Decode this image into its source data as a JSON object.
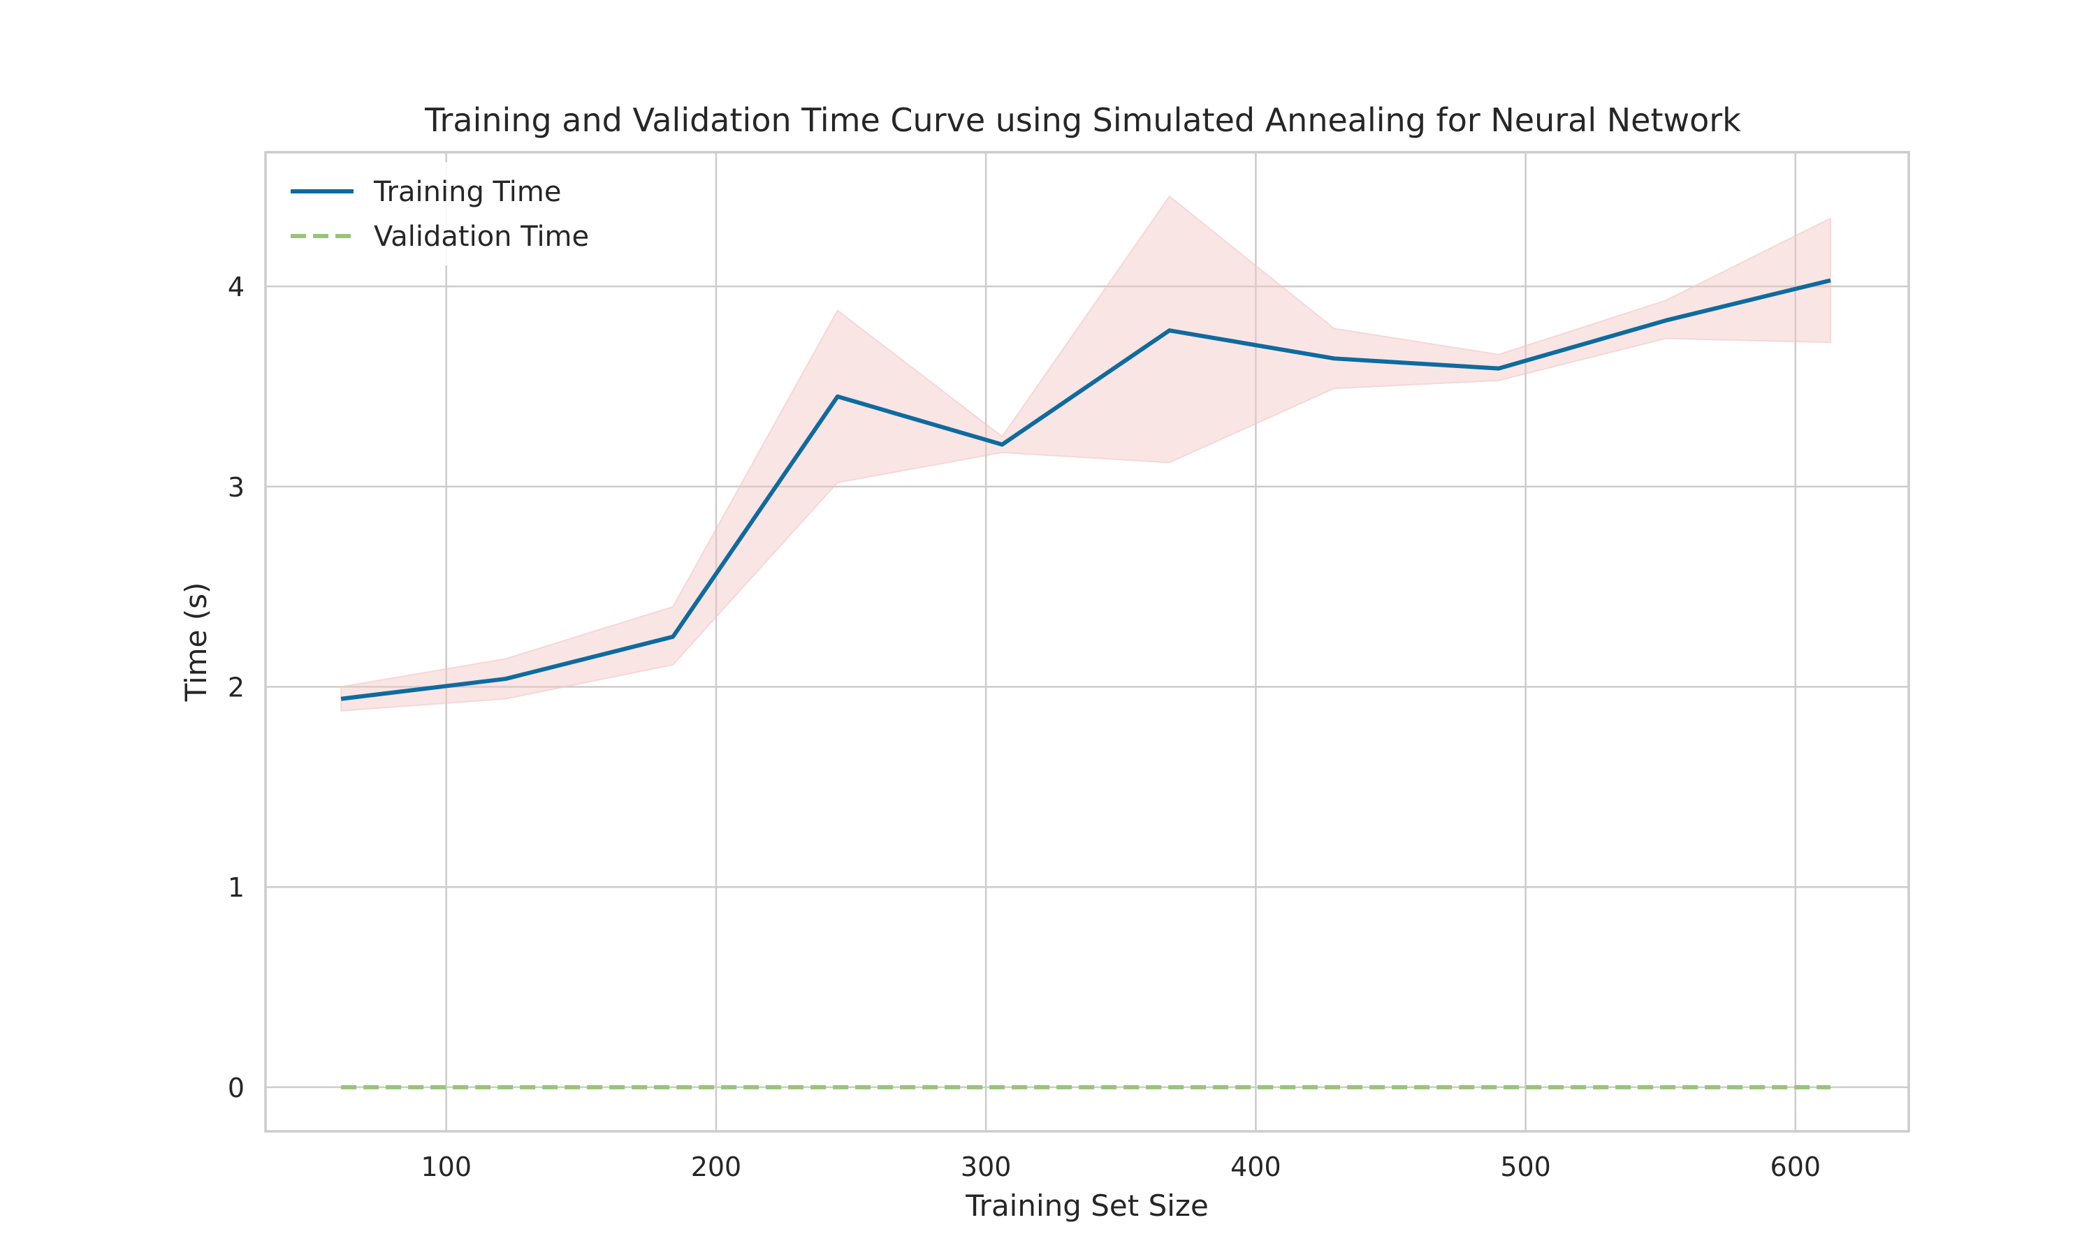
{
  "chart_data": {
    "type": "line",
    "title": "Training and Validation Time Curve using Simulated Annealing for Neural Network",
    "xlabel": "Training Set Size",
    "ylabel": "Time (s)",
    "xlim": [
      33,
      642
    ],
    "ylim": [
      -0.22,
      4.67
    ],
    "xticks": [
      100,
      200,
      300,
      400,
      500,
      600
    ],
    "yticks": [
      0,
      1,
      2,
      3,
      4
    ],
    "grid": true,
    "legend_position": "top-left",
    "x": [
      61,
      122,
      184,
      245,
      306,
      368,
      429,
      490,
      552,
      613
    ],
    "series": [
      {
        "name": "Training Time",
        "color": "#0e6b9e",
        "style": "solid",
        "values": [
          1.94,
          2.04,
          2.25,
          3.45,
          3.21,
          3.78,
          3.64,
          3.59,
          3.83,
          4.03
        ],
        "band_upper": [
          2.0,
          2.14,
          2.4,
          3.88,
          3.25,
          4.45,
          3.79,
          3.66,
          3.93,
          4.34
        ],
        "band_lower": [
          1.88,
          1.94,
          2.11,
          3.02,
          3.17,
          3.12,
          3.49,
          3.53,
          3.74,
          3.72
        ],
        "band_color": "#f4c6c6"
      },
      {
        "name": "Validation Time",
        "color": "#98c47a",
        "style": "dashed",
        "values": [
          0.0,
          0.0,
          0.0,
          0.0,
          0.0,
          0.0,
          0.0,
          0.0,
          0.0,
          0.0
        ]
      }
    ]
  }
}
